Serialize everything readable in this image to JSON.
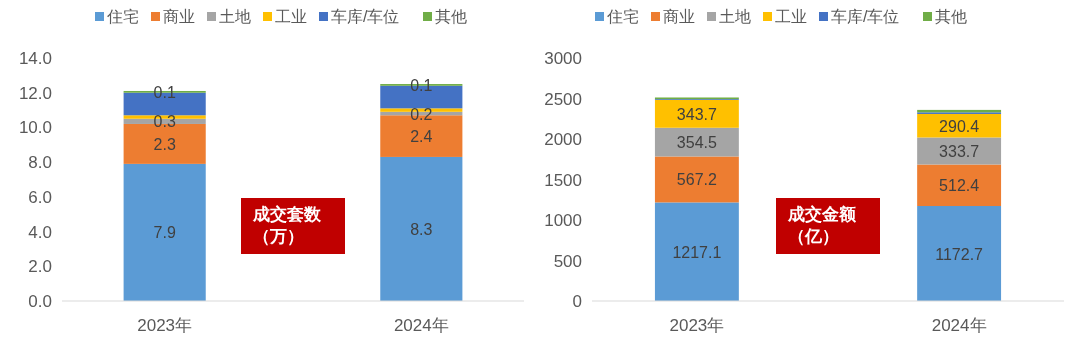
{
  "chart_data": [
    {
      "type": "bar",
      "stacked": true,
      "categories": [
        "2023年",
        "2024年"
      ],
      "ylim": [
        0,
        14
      ],
      "yticks": [
        {
          "value": 0,
          "label": "0.0"
        },
        {
          "value": 2,
          "label": "2.0"
        },
        {
          "value": 4,
          "label": "4.0"
        },
        {
          "value": 6,
          "label": "6.0"
        },
        {
          "value": 8,
          "label": "8.0"
        },
        {
          "value": 10,
          "label": "10.0"
        },
        {
          "value": 12,
          "label": "12.0"
        },
        {
          "value": 14,
          "label": "14.0"
        }
      ],
      "legend": "top",
      "annotations": [
        "成交套数（万）"
      ],
      "series": [
        {
          "name": "住宅",
          "color": "#5b9bd5",
          "values": [
            7.9,
            8.3
          ],
          "value_labels": [
            "7.9",
            "8.3"
          ]
        },
        {
          "name": "商业",
          "color": "#ed7d31",
          "values": [
            2.3,
            2.4
          ],
          "value_labels": [
            "2.3",
            "2.4"
          ]
        },
        {
          "name": "土地",
          "color": "#a5a5a5",
          "values": [
            0.3,
            0.2
          ],
          "value_labels": [
            "0.3",
            "0.2"
          ]
        },
        {
          "name": "工业",
          "color": "#ffc000",
          "values": [
            0.2,
            0.2
          ],
          "value_labels": [
            null,
            null
          ]
        },
        {
          "name": "车库/车位",
          "color": "#4472c4",
          "values": [
            1.3,
            1.3
          ],
          "value_labels": [
            null,
            null
          ]
        },
        {
          "name": "其他",
          "color": "#70ad47",
          "values": [
            0.1,
            0.1
          ],
          "value_labels": [
            "0.1",
            "0.1"
          ]
        }
      ]
    },
    {
      "type": "bar",
      "stacked": true,
      "categories": [
        "2023年",
        "2024年"
      ],
      "ylim": [
        0,
        3000
      ],
      "yticks": [
        0,
        500,
        1000,
        1500,
        2000,
        2500,
        3000
      ],
      "legend": "top",
      "annotations": [
        "成交金额（亿）"
      ],
      "series": [
        {
          "name": "住宅",
          "color": "#5b9bd5",
          "values": [
            1217.1,
            1172.7
          ],
          "value_labels": [
            "1217.1",
            "1172.7"
          ]
        },
        {
          "name": "商业",
          "color": "#ed7d31",
          "values": [
            567.2,
            512.4
          ],
          "value_labels": [
            "567.2",
            "512.4"
          ]
        },
        {
          "name": "土地",
          "color": "#a5a5a5",
          "values": [
            354.5,
            333.7
          ],
          "value_labels": [
            "354.5",
            "333.7"
          ]
        },
        {
          "name": "工业",
          "color": "#ffc000",
          "values": [
            343.7,
            290.4
          ],
          "value_labels": [
            "343.7",
            "290.4"
          ]
        },
        {
          "name": "车库/车位",
          "color": "#4472c4",
          "values": [
            10,
            20
          ],
          "value_labels": [
            null,
            null
          ]
        },
        {
          "name": "其他",
          "color": "#70ad47",
          "values": [
            20,
            30
          ],
          "value_labels": [
            null,
            null
          ]
        }
      ]
    }
  ]
}
